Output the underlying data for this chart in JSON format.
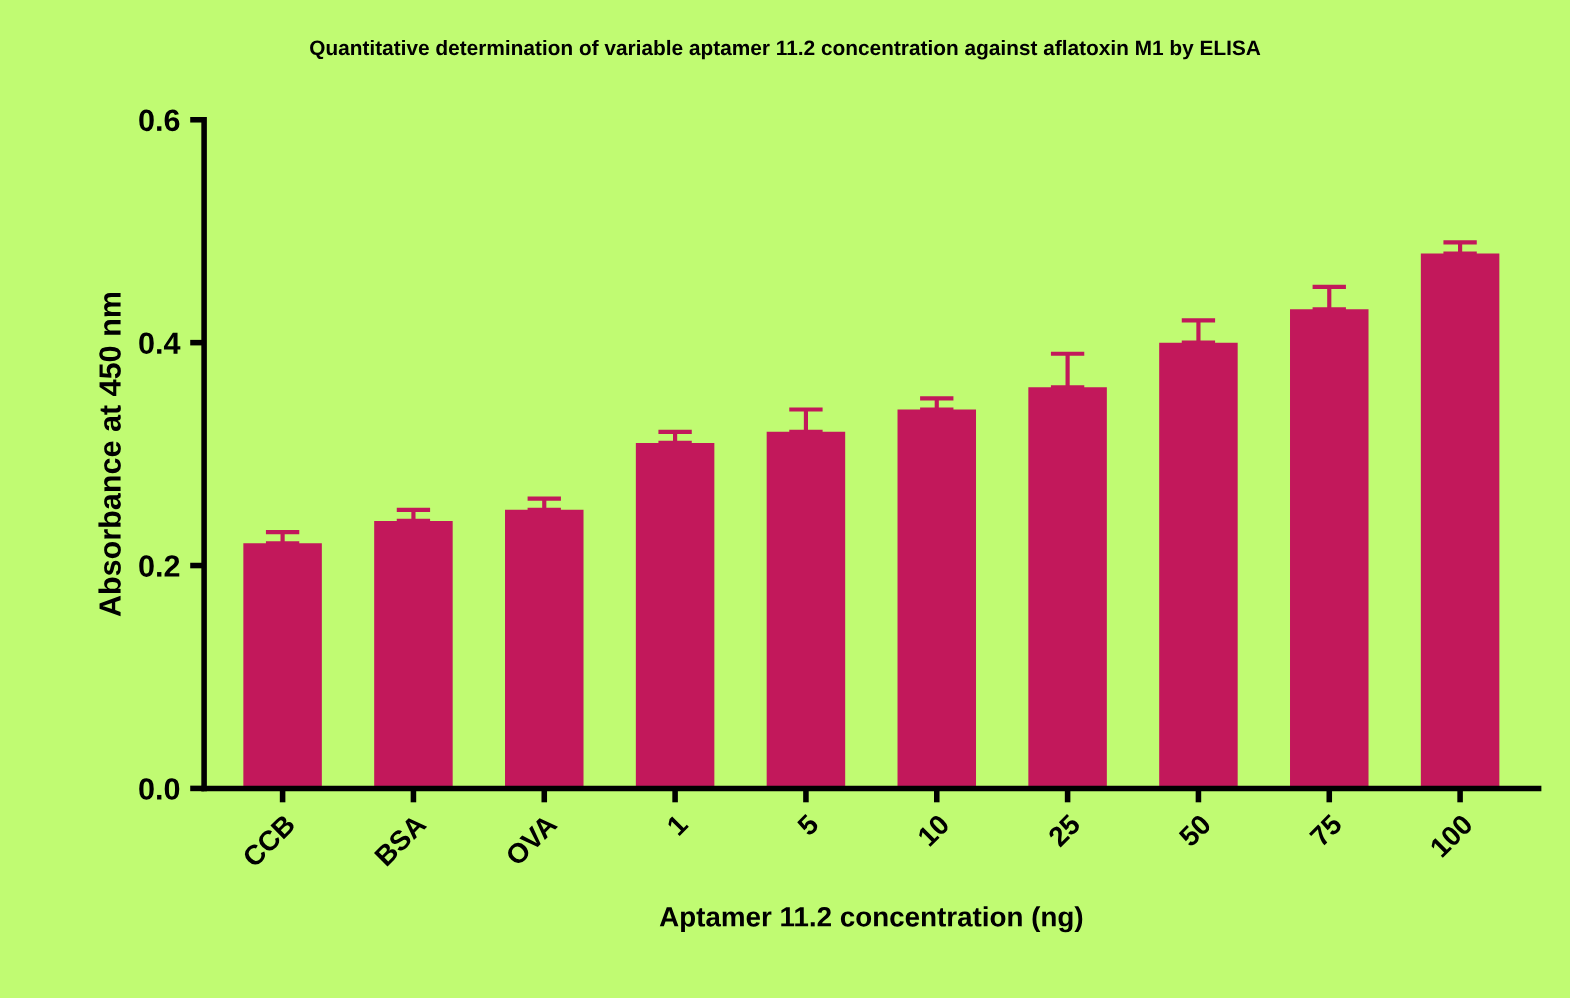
{
  "chart_data": {
    "type": "bar",
    "title": "Quantitative determination of variable aptamer 11.2 concentration against aflatoxin M1 by ELISA",
    "xlabel": "Aptamer 11.2 concentration (ng)",
    "ylabel": "Absorbance at 450 nm",
    "categories": [
      "CCB",
      "BSA",
      "OVA",
      "1",
      "5",
      "10",
      "25",
      "50",
      "75",
      "100"
    ],
    "values": [
      0.22,
      0.24,
      0.25,
      0.31,
      0.32,
      0.34,
      0.36,
      0.4,
      0.43,
      0.48
    ],
    "errors": [
      [
        0.22,
        0.23
      ],
      [
        0.24,
        0.25
      ],
      [
        0.25,
        0.26
      ],
      [
        0.31,
        0.32
      ],
      [
        0.32,
        0.34
      ],
      [
        0.34,
        0.35
      ],
      [
        0.36,
        0.39
      ],
      [
        0.4,
        0.42
      ],
      [
        0.43,
        0.45
      ],
      [
        0.48,
        0.49
      ]
    ],
    "color": "#c2185b",
    "ylim": [
      0,
      0.6
    ],
    "yticks": [
      {
        "value": 0,
        "label": "0.0"
      },
      {
        "value": 0.2,
        "label": "0.2"
      },
      {
        "value": 0.4,
        "label": "0.4"
      },
      {
        "value": 0.6,
        "label": "0.6"
      }
    ],
    "grid": false,
    "legend": false
  }
}
